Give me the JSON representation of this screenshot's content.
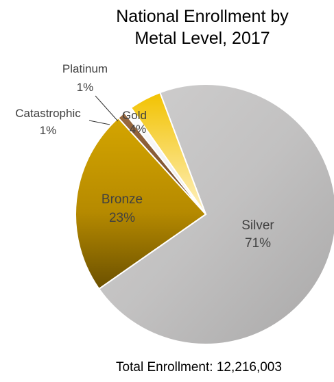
{
  "chart_data": {
    "type": "pie",
    "title": [
      "National Enrollment by",
      "Metal Level, 2017"
    ],
    "slices": [
      {
        "name": "Silver",
        "label": "71%",
        "value": 71,
        "color": "#c0bfbf"
      },
      {
        "name": "Bronze",
        "label": "23%",
        "value": 23,
        "color": "#bf9100"
      },
      {
        "name": "Catastrophic",
        "label": "1%",
        "value": 1,
        "color": "#8a5a36"
      },
      {
        "name": "Platinum",
        "label": "1%",
        "value": 1,
        "color": "#d8d8d8"
      },
      {
        "name": "Gold",
        "label": "4%",
        "value": 4,
        "color": "#f2c200"
      }
    ],
    "footer": "Total Enrollment: 12,216,003"
  }
}
